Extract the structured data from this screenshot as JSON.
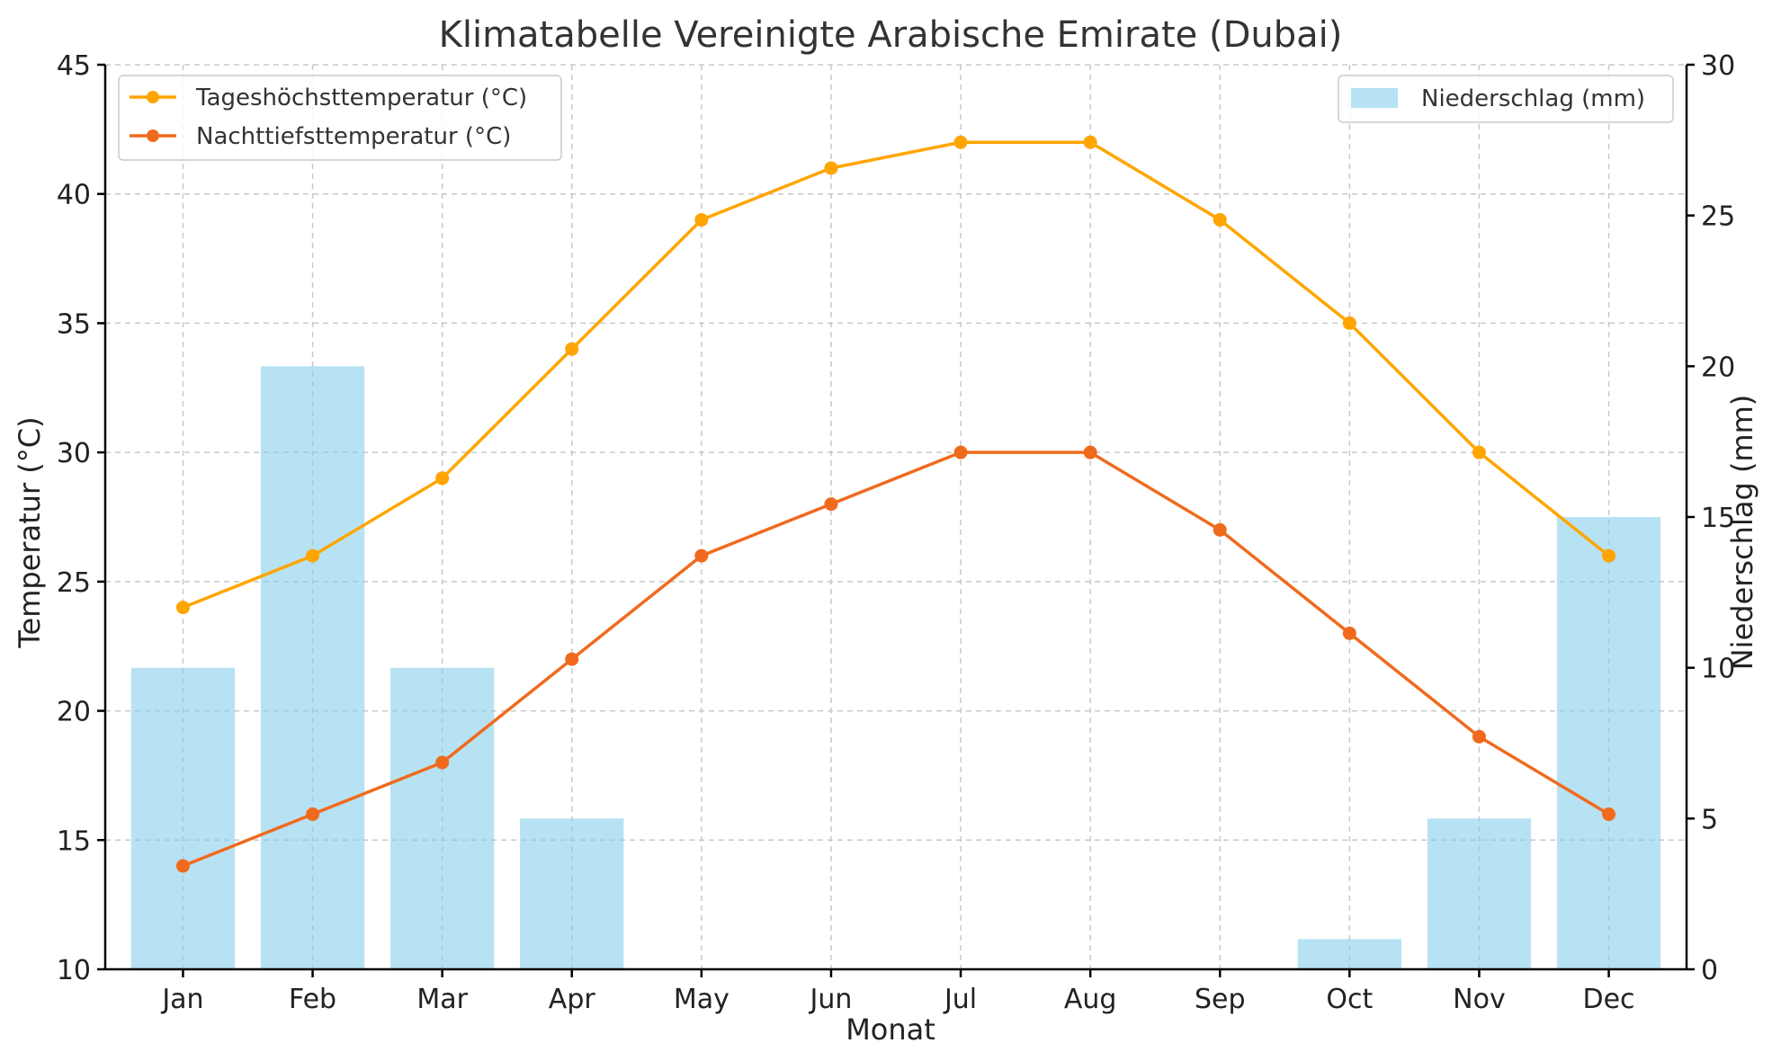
{
  "chart_data": {
    "type": "bar",
    "title": "Klimatabelle Vereinigte Arabische Emirate (Dubai)",
    "xlabel": "Monat",
    "ylabel": "Temperatur (°C)",
    "y2label": "Niederschlag (mm)",
    "categories": [
      "Jan",
      "Feb",
      "Mar",
      "Apr",
      "May",
      "Jun",
      "Jul",
      "Aug",
      "Sep",
      "Oct",
      "Nov",
      "Dec"
    ],
    "ylim": [
      10,
      45
    ],
    "y2lim": [
      0,
      30
    ],
    "yticks": [
      10,
      15,
      20,
      25,
      30,
      35,
      40,
      45
    ],
    "y2ticks": [
      0,
      5,
      10,
      15,
      20,
      25,
      30
    ],
    "grid": true,
    "series": [
      {
        "name": "Niederschlag (mm)",
        "type": "bar",
        "axis": "right",
        "color": "#87ceeb",
        "values": [
          10,
          20,
          10,
          5,
          0,
          0,
          0,
          0,
          0,
          1,
          5,
          15
        ]
      },
      {
        "name": "Tageshöchsttemperatur (°C)",
        "type": "line",
        "axis": "left",
        "color": "#ffa500",
        "values": [
          24,
          26,
          29,
          34,
          39,
          41,
          42,
          42,
          39,
          35,
          30,
          26
        ]
      },
      {
        "name": "Nachttiefsttemperatur (°C)",
        "type": "line",
        "axis": "left",
        "color": "#f06a1e",
        "values": [
          14,
          16,
          18,
          22,
          26,
          28,
          30,
          30,
          27,
          23,
          19,
          16
        ]
      }
    ],
    "legend_left_placement": "top-left",
    "legend_right_placement": "top-right"
  }
}
